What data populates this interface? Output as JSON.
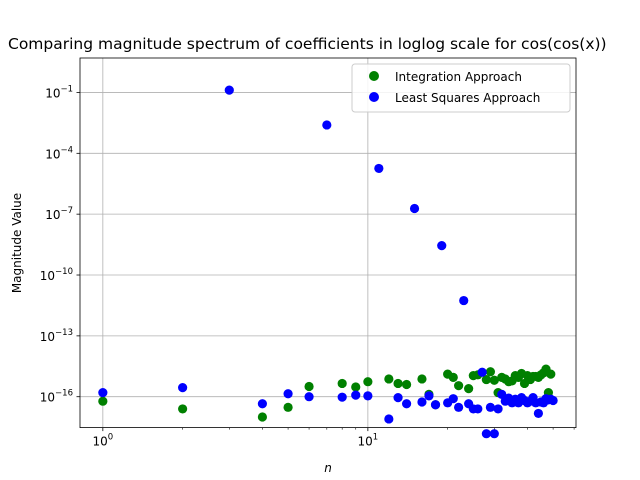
{
  "chart_data": {
    "type": "scatter",
    "title": "Comparing magnitude spectrum of coefficients in loglog scale for cos(cos(x))",
    "xlabel": "n",
    "ylabel": "Magnitude Value",
    "xscale": "log",
    "yscale": "log",
    "xlim": [
      0.82,
      61
    ],
    "ylim": [
      3e-18,
      5
    ],
    "grid": true,
    "legend_position": "top-right",
    "x_ticks": [
      {
        "value": 1,
        "label": "10",
        "exp": "0"
      },
      {
        "value": 10,
        "label": "10",
        "exp": "1"
      }
    ],
    "y_ticks": [
      {
        "value": 1e-16,
        "label": "10",
        "exp": "−16"
      },
      {
        "value": 1e-13,
        "label": "10",
        "exp": "−13"
      },
      {
        "value": 1e-10,
        "label": "10",
        "exp": "−10"
      },
      {
        "value": 1e-07,
        "label": "10",
        "exp": "−7"
      },
      {
        "value": 0.0001,
        "label": "10",
        "exp": "−4"
      },
      {
        "value": 0.1,
        "label": "10",
        "exp": "−1"
      }
    ],
    "series": [
      {
        "name": "Integration Approach",
        "color": "#008000",
        "points": [
          [
            1,
            6e-17
          ],
          [
            2,
            2.5e-17
          ],
          [
            4,
            1e-17
          ],
          [
            5,
            3e-17
          ],
          [
            6,
            3.2e-16
          ],
          [
            8,
            4.5e-16
          ],
          [
            9,
            3e-16
          ],
          [
            10,
            5.5e-16
          ],
          [
            12,
            7.5e-16
          ],
          [
            13,
            4.5e-16
          ],
          [
            14,
            4e-16
          ],
          [
            16,
            7.5e-16
          ],
          [
            17,
            1.3e-16
          ],
          [
            18,
            4e-17
          ],
          [
            20,
            1.3e-15
          ],
          [
            21,
            9e-16
          ],
          [
            22,
            3.5e-16
          ],
          [
            24,
            2.5e-16
          ],
          [
            25,
            1.1e-15
          ],
          [
            26,
            1.2e-15
          ],
          [
            28,
            7e-16
          ],
          [
            29,
            1.7e-15
          ],
          [
            30,
            6.5e-16
          ],
          [
            31,
            1.6e-16
          ],
          [
            32,
            9e-16
          ],
          [
            33,
            7.5e-16
          ],
          [
            34,
            5.5e-16
          ],
          [
            35,
            6e-16
          ],
          [
            36,
            1.1e-15
          ],
          [
            37,
            9e-16
          ],
          [
            38,
            1.4e-15
          ],
          [
            39,
            4.5e-16
          ],
          [
            40,
            1.1e-15
          ],
          [
            41,
            7e-16
          ],
          [
            42,
            1e-15
          ],
          [
            43,
            1e-15
          ],
          [
            44,
            9e-16
          ],
          [
            45,
            1.2e-15
          ],
          [
            46,
            1.5e-15
          ],
          [
            47,
            2.3e-15
          ],
          [
            48,
            1.6e-16
          ],
          [
            49,
            1.3e-15
          ]
        ]
      },
      {
        "name": "Least Squares Approach",
        "color": "#0000ff",
        "points": [
          [
            1,
            1.6e-16
          ],
          [
            2,
            2.8e-16
          ],
          [
            3,
            0.13
          ],
          [
            4,
            4.5e-17
          ],
          [
            5,
            1.4e-16
          ],
          [
            6,
            1e-16
          ],
          [
            7,
            0.0025
          ],
          [
            8,
            9.5e-17
          ],
          [
            9,
            1.2e-16
          ],
          [
            10,
            1.1e-16
          ],
          [
            11,
            1.8e-05
          ],
          [
            12,
            8e-18
          ],
          [
            13,
            9e-17
          ],
          [
            14,
            4.5e-17
          ],
          [
            15,
            1.9e-07
          ],
          [
            16,
            5.5e-17
          ],
          [
            17,
            1.1e-16
          ],
          [
            18,
            4e-17
          ],
          [
            19,
            2.8e-09
          ],
          [
            20,
            5e-17
          ],
          [
            21,
            8e-17
          ],
          [
            22,
            3e-17
          ],
          [
            23,
            5.5e-12
          ],
          [
            24,
            4.5e-17
          ],
          [
            25,
            2.5e-17
          ],
          [
            26,
            2.5e-17
          ],
          [
            27,
            1.6e-15
          ],
          [
            28,
            1.5e-18
          ],
          [
            29,
            3e-17
          ],
          [
            30,
            1.5e-18
          ],
          [
            31,
            2.5e-17
          ],
          [
            32,
            1.3e-16
          ],
          [
            33,
            6e-17
          ],
          [
            34,
            8.5e-17
          ],
          [
            35,
            5e-17
          ],
          [
            36,
            7.5e-17
          ],
          [
            37,
            5e-17
          ],
          [
            38,
            9e-17
          ],
          [
            39,
            6.5e-17
          ],
          [
            40,
            5e-17
          ],
          [
            41,
            6e-17
          ],
          [
            42,
            9e-17
          ],
          [
            43,
            5e-17
          ],
          [
            44,
            1.5e-17
          ],
          [
            45,
            5.5e-17
          ],
          [
            46,
            5e-17
          ],
          [
            47,
            8e-17
          ],
          [
            48,
            7e-17
          ],
          [
            49,
            7.5e-17
          ],
          [
            50,
            6.5e-17
          ]
        ]
      }
    ]
  }
}
